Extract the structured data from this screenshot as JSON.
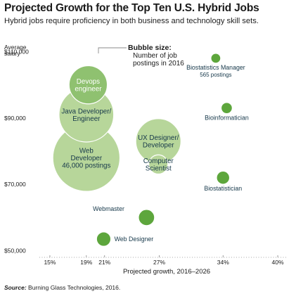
{
  "title": "Projected Growth for the Top Ten U.S. Hybrid Jobs",
  "subtitle": "Hybrid jobs require proficiency in both business and technology skill sets.",
  "source_label": "Source:",
  "source_text": "Burning Glass Technologies, 2016.",
  "colors": {
    "bubble": "#b7d69a",
    "bubble_mid": "#8fc170",
    "bubble_dark": "#5da63c",
    "text_dark": "#16384a",
    "text_white": "#ffffff",
    "axis": "#8a8a8a"
  },
  "chart_data": {
    "type": "scatter",
    "title": "Projected Growth for the Top Ten U.S. Hybrid Jobs",
    "ylabel_lines": [
      "Average",
      "salary"
    ],
    "xlabel": "Projected growth, 2016–2026",
    "xlim": [
      0.14,
      0.41
    ],
    "ylim": [
      48000,
      112000
    ],
    "x_ticks": [
      {
        "value": 0.15,
        "label": "15%"
      },
      {
        "value": 0.19,
        "label": "19%"
      },
      {
        "value": 0.21,
        "label": "21%"
      },
      {
        "value": 0.27,
        "label": "27%"
      },
      {
        "value": 0.34,
        "label": "34%"
      },
      {
        "value": 0.4,
        "label": "40%"
      }
    ],
    "y_ticks": [
      {
        "value": 110000,
        "label": "$110,000"
      },
      {
        "value": 90000,
        "label": "$90,000"
      },
      {
        "value": 70000,
        "label": "$70,000"
      },
      {
        "value": 50000,
        "label": "$50,000"
      }
    ],
    "size_legend": {
      "title": "Bubble size:",
      "lines": [
        "Number of job",
        "postings in 2016"
      ]
    },
    "points": [
      {
        "label_lines": [
          "Devops",
          "engineer"
        ],
        "x": 0.192,
        "y": 100000,
        "postings": 14000,
        "label_color": "white",
        "label_pos": "inside"
      },
      {
        "label_lines": [
          "Java Developer/",
          "Engineer"
        ],
        "x": 0.19,
        "y": 91000,
        "postings": 30000,
        "label_color": "dark",
        "label_pos": "inside"
      },
      {
        "label_lines": [
          "Web",
          "Developer",
          "46,000 postings"
        ],
        "x": 0.19,
        "y": 78000,
        "postings": 46000,
        "label_color": "dark",
        "label_pos": "inside"
      },
      {
        "label_lines": [
          "UX Designer/",
          "Developer"
        ],
        "x": 0.269,
        "y": 83000,
        "postings": 20000,
        "label_color": "dark",
        "label_pos": "inside"
      },
      {
        "label_lines": [
          "Computer",
          "Scientist"
        ],
        "x": 0.269,
        "y": 76000,
        "postings": 3000,
        "label_color": "dark",
        "label_pos": "inside"
      },
      {
        "label_lines": [
          "Webmaster"
        ],
        "x": 0.256,
        "y": 60000,
        "postings": 2000,
        "label_color": "dark",
        "label_pos": "left"
      },
      {
        "label_lines": [
          "Web Designer"
        ],
        "x": 0.209,
        "y": 53500,
        "postings": 1500,
        "label_color": "dark",
        "label_pos": "right"
      },
      {
        "label_lines": [
          "Biostatistics Manager",
          "565 postings"
        ],
        "x": 0.332,
        "y": 108000,
        "postings": 565,
        "label_color": "dark",
        "label_pos": "below"
      },
      {
        "label_lines": [
          "Bioinformatician"
        ],
        "x": 0.344,
        "y": 93000,
        "postings": 800,
        "label_color": "dark",
        "label_pos": "below"
      },
      {
        "label_lines": [
          "Biostatistician"
        ],
        "x": 0.34,
        "y": 72000,
        "postings": 1200,
        "label_color": "dark",
        "label_pos": "below"
      }
    ]
  }
}
